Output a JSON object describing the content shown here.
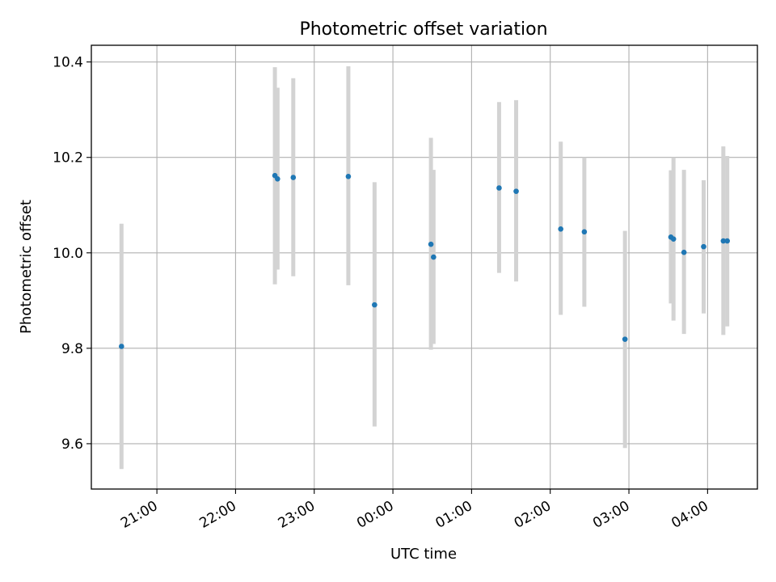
{
  "chart_data": {
    "type": "scatter",
    "title": "Photometric offset variation",
    "xlabel": "UTC time",
    "ylabel": "Photometric offset",
    "x_ticks": [
      "21:00",
      "22:00",
      "23:00",
      "00:00",
      "01:00",
      "02:00",
      "03:00",
      "04:00"
    ],
    "y_ticks": [
      "9.6",
      "9.8",
      "10.0",
      "10.2",
      "10.4"
    ],
    "ylim": [
      9.505,
      10.435
    ],
    "xlim": [
      "20:10",
      "04:38"
    ],
    "grid": true,
    "marker_color": "#1f77b4",
    "errorbar_color": "#d3d3d3",
    "points": [
      {
        "time": "20:33",
        "value": 9.804,
        "low": 9.547,
        "high": 10.061
      },
      {
        "time": "22:30",
        "value": 10.162,
        "low": 9.934,
        "high": 10.389
      },
      {
        "time": "22:32",
        "value": 10.155,
        "low": 9.965,
        "high": 10.346
      },
      {
        "time": "22:44",
        "value": 10.158,
        "low": 9.951,
        "high": 10.366
      },
      {
        "time": "23:26",
        "value": 10.16,
        "low": 9.932,
        "high": 10.391
      },
      {
        "time": "23:46",
        "value": 9.891,
        "low": 9.636,
        "high": 10.148
      },
      {
        "time": "00:29",
        "value": 10.018,
        "low": 9.797,
        "high": 10.241
      },
      {
        "time": "00:31",
        "value": 9.991,
        "low": 9.809,
        "high": 10.174
      },
      {
        "time": "01:21",
        "value": 10.136,
        "low": 9.958,
        "high": 10.316
      },
      {
        "time": "01:34",
        "value": 10.129,
        "low": 9.94,
        "high": 10.32
      },
      {
        "time": "02:08",
        "value": 10.05,
        "low": 9.87,
        "high": 10.233
      },
      {
        "time": "02:26",
        "value": 10.044,
        "low": 9.887,
        "high": 10.2
      },
      {
        "time": "02:57",
        "value": 9.819,
        "low": 9.591,
        "high": 10.046
      },
      {
        "time": "03:32",
        "value": 10.033,
        "low": 9.894,
        "high": 10.173
      },
      {
        "time": "03:34",
        "value": 10.029,
        "low": 9.858,
        "high": 10.2
      },
      {
        "time": "03:42",
        "value": 10.001,
        "low": 9.83,
        "high": 10.174
      },
      {
        "time": "03:57",
        "value": 10.013,
        "low": 9.873,
        "high": 10.152
      },
      {
        "time": "04:12",
        "value": 10.025,
        "low": 9.828,
        "high": 10.223
      },
      {
        "time": "04:15",
        "value": 10.025,
        "low": 9.846,
        "high": 10.203
      }
    ]
  }
}
